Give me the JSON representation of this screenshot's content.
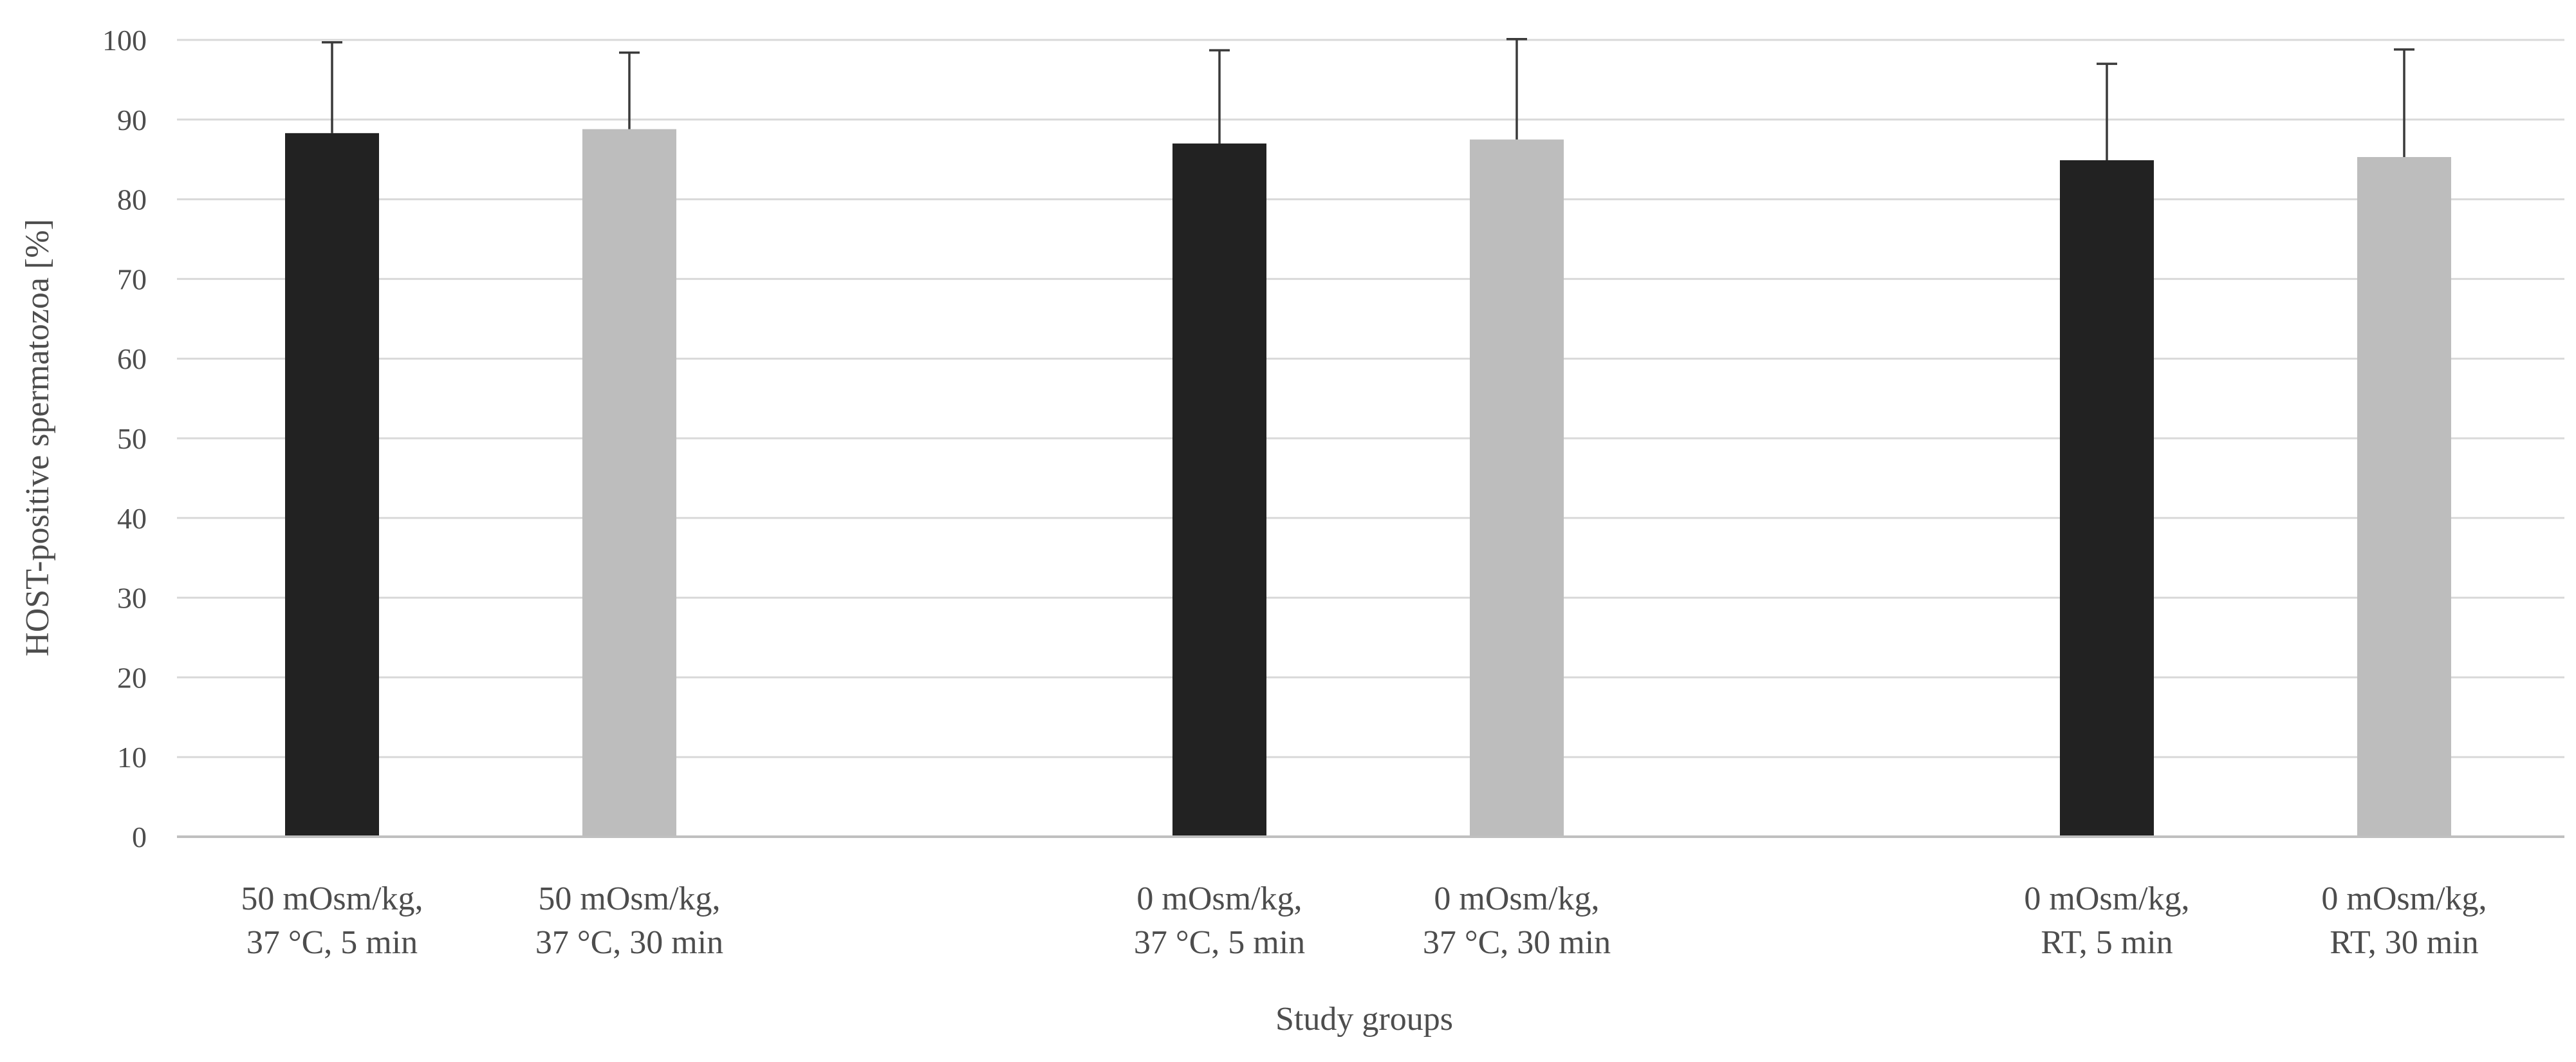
{
  "chart_data": {
    "type": "bar",
    "title": "",
    "xlabel": "Study groups",
    "ylabel": "HOST-positive spermatozoa [%]",
    "ylim": [
      0,
      100
    ],
    "yticks": [
      "0",
      "10",
      "20",
      "30",
      "40",
      "50",
      "60",
      "70",
      "80",
      "90",
      "100"
    ],
    "grid": true,
    "legend": "none",
    "categories": [
      [
        "50 mOsm/kg,",
        "37 °C, 5 min"
      ],
      [
        "50 mOsm/kg,",
        "37 °C, 30 min"
      ],
      [
        "0 mOsm/kg,",
        "37 °C, 5 min"
      ],
      [
        "0 mOsm/kg,",
        "37 °C, 30 min"
      ],
      [
        "0 mOsm/kg,",
        "RT, 5 min"
      ],
      [
        "0 mOsm/kg,",
        "RT, 30 min"
      ]
    ],
    "values": [
      88.3,
      88.8,
      87.0,
      87.5,
      84.9,
      85.3
    ],
    "errors": [
      11.4,
      9.6,
      11.7,
      12.6,
      12.1,
      13.5
    ],
    "colors": [
      "#222222",
      "#bdbdbd",
      "#222222",
      "#bdbdbd",
      "#222222",
      "#bdbdbd"
    ]
  }
}
